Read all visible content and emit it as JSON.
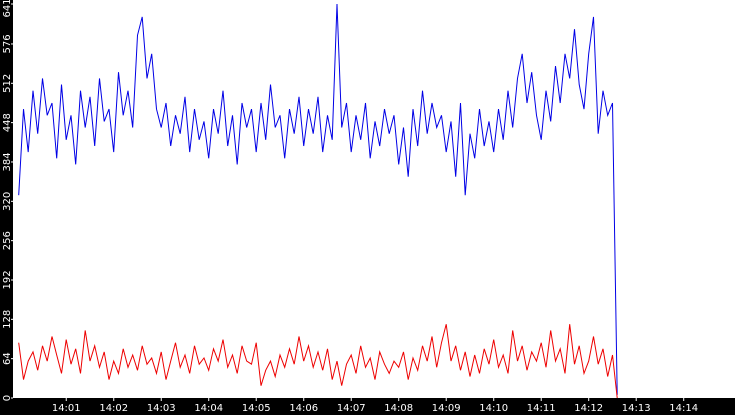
{
  "chart_data": {
    "type": "line",
    "x": [
      0,
      0.1,
      0.2,
      0.3,
      0.4,
      0.5,
      0.6,
      0.7,
      0.8,
      0.9,
      1,
      1.1,
      1.2,
      1.3,
      1.4,
      1.5,
      1.6,
      1.7,
      1.8,
      1.9,
      2,
      2.1,
      2.2,
      2.3,
      2.4,
      2.5,
      2.6,
      2.7,
      2.8,
      2.9,
      3,
      3.1,
      3.2,
      3.3,
      3.4,
      3.5,
      3.6,
      3.7,
      3.8,
      3.9,
      4,
      4.1,
      4.2,
      4.3,
      4.4,
      4.5,
      4.6,
      4.7,
      4.8,
      4.9,
      5,
      5.1,
      5.2,
      5.3,
      5.4,
      5.5,
      5.6,
      5.7,
      5.8,
      5.9,
      6,
      6.1,
      6.2,
      6.3,
      6.4,
      6.5,
      6.6,
      6.7,
      6.8,
      6.9,
      7,
      7.1,
      7.2,
      7.3,
      7.4,
      7.5,
      7.6,
      7.7,
      7.8,
      7.9,
      8,
      8.1,
      8.2,
      8.3,
      8.4,
      8.5,
      8.6,
      8.7,
      8.8,
      8.9,
      9,
      9.1,
      9.2,
      9.3,
      9.4,
      9.5,
      9.6,
      9.7,
      9.8,
      9.9,
      10,
      10.1,
      10.2,
      10.3,
      10.4,
      10.5,
      10.6,
      10.7,
      10.8,
      10.9,
      11,
      11.1,
      11.2,
      11.3,
      11.4,
      11.5,
      11.6,
      11.7,
      11.8,
      11.9,
      12,
      12.1,
      12.2,
      12.3,
      12.4,
      12.5,
      12.6
    ],
    "series": [
      {
        "color": "#0000e6",
        "values": [
          330,
          470,
          400,
          500,
          430,
          520,
          460,
          480,
          390,
          510,
          420,
          460,
          380,
          500,
          440,
          490,
          410,
          520,
          450,
          470,
          400,
          530,
          460,
          500,
          440,
          590,
          620,
          520,
          560,
          470,
          440,
          480,
          410,
          460,
          430,
          490,
          400,
          470,
          420,
          450,
          390,
          470,
          430,
          500,
          410,
          460,
          380,
          480,
          440,
          470,
          400,
          480,
          420,
          510,
          440,
          460,
          390,
          470,
          430,
          490,
          410,
          470,
          430,
          490,
          400,
          460,
          420,
          641,
          440,
          480,
          400,
          460,
          420,
          480,
          390,
          450,
          410,
          470,
          430,
          460,
          380,
          440,
          360,
          470,
          410,
          500,
          430,
          480,
          440,
          460,
          400,
          450,
          360,
          480,
          330,
          430,
          390,
          470,
          410,
          450,
          400,
          470,
          420,
          500,
          440,
          520,
          560,
          480,
          530,
          460,
          420,
          500,
          450,
          540,
          480,
          560,
          520,
          600,
          510,
          470,
          560,
          620,
          430,
          500,
          460,
          480,
          5
        ]
      },
      {
        "color": "#ee0000",
        "values": [
          90,
          30,
          60,
          75,
          45,
          85,
          60,
          100,
          70,
          40,
          95,
          55,
          80,
          40,
          110,
          60,
          85,
          50,
          75,
          30,
          60,
          40,
          80,
          50,
          70,
          45,
          85,
          55,
          65,
          40,
          75,
          30,
          60,
          90,
          50,
          70,
          40,
          85,
          55,
          65,
          45,
          80,
          60,
          95,
          50,
          70,
          40,
          85,
          60,
          55,
          90,
          20,
          45,
          60,
          35,
          70,
          50,
          80,
          55,
          100,
          60,
          85,
          50,
          75,
          45,
          80,
          30,
          60,
          20,
          55,
          70,
          40,
          85,
          50,
          65,
          30,
          75,
          55,
          40,
          60,
          50,
          75,
          30,
          65,
          45,
          85,
          60,
          100,
          50,
          90,
          120,
          60,
          85,
          45,
          75,
          35,
          70,
          40,
          80,
          55,
          95,
          50,
          70,
          40,
          110,
          60,
          85,
          45,
          75,
          60,
          90,
          50,
          110,
          60,
          80,
          40,
          120,
          55,
          85,
          40,
          60,
          100,
          55,
          80,
          35,
          70,
          0
        ]
      }
    ],
    "xlim": [
      -0.1,
      15.08
    ],
    "xticks": [
      {
        "value": 1,
        "label": "14:01"
      },
      {
        "value": 2,
        "label": "14:02"
      },
      {
        "value": 3,
        "label": "14:03"
      },
      {
        "value": 4,
        "label": "14:04"
      },
      {
        "value": 5,
        "label": "14:05"
      },
      {
        "value": 6,
        "label": "14:06"
      },
      {
        "value": 7,
        "label": "14:07"
      },
      {
        "value": 8,
        "label": "14:08"
      },
      {
        "value": 9,
        "label": "14:09"
      },
      {
        "value": 10,
        "label": "14:10"
      },
      {
        "value": 11,
        "label": "14:11"
      },
      {
        "value": 12,
        "label": "14:12"
      },
      {
        "value": 13,
        "label": "14:13"
      },
      {
        "value": 14,
        "label": "14:14"
      }
    ],
    "ylim": [
      0,
      641
    ],
    "yticks": [
      0,
      64,
      128,
      192,
      256,
      320,
      384,
      448,
      512,
      576,
      641
    ]
  }
}
